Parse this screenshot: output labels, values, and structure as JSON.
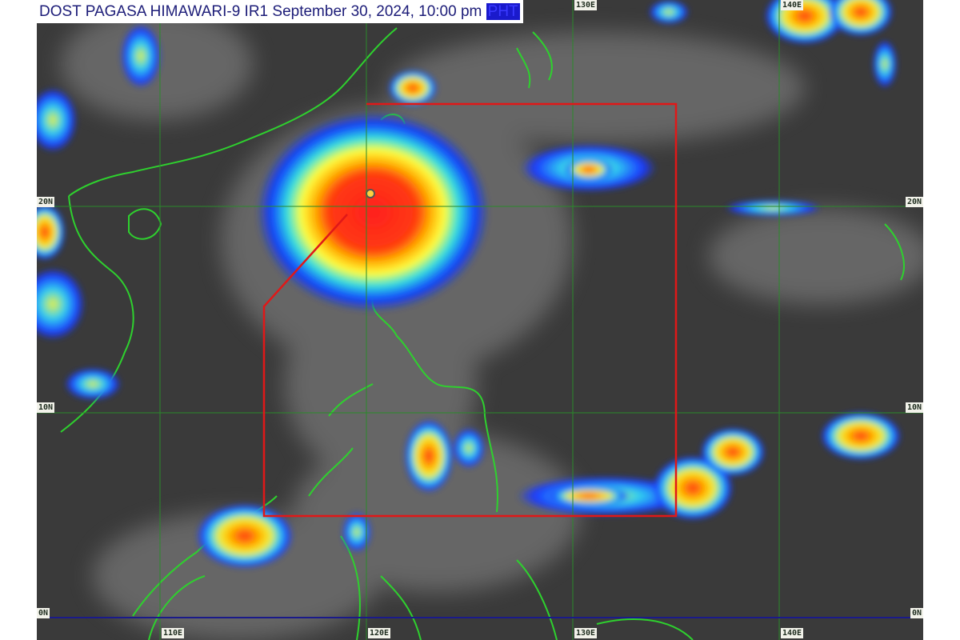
{
  "header": {
    "title": "DOST PAGASA HIMAWARI-9 IR1 September 30, 2024, 10:00 pm",
    "timezone": "PHT"
  },
  "grid": {
    "latitudes": [
      "20N",
      "10N",
      "0N"
    ],
    "longitudes": [
      "110E",
      "120E",
      "130E",
      "140E"
    ]
  },
  "colors": {
    "coastline": "#2ed12e",
    "grid": "#2a8a2a",
    "equator": "#1a1a8a",
    "par_box": "#e01818",
    "title_text": "#1c1c78"
  }
}
